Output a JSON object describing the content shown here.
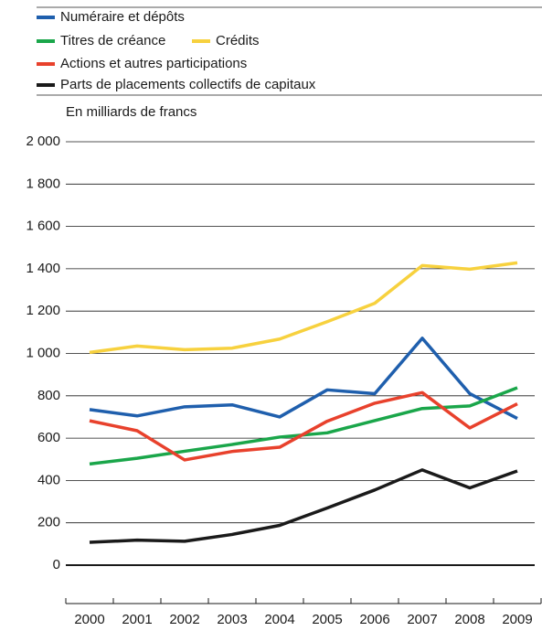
{
  "chart_data": {
    "type": "line",
    "y_label": "En milliards de francs",
    "categories": [
      "2000",
      "2001",
      "2002",
      "2003",
      "2004",
      "2005",
      "2006",
      "2007",
      "2008",
      "2009"
    ],
    "series": [
      {
        "name": "Numéraire et dépôts",
        "color": "#1f5fad",
        "values": [
          735,
          705,
          748,
          757,
          700,
          828,
          810,
          1072,
          810,
          693
        ]
      },
      {
        "name": "Titres de créance",
        "color": "#1aa64a",
        "values": [
          478,
          505,
          538,
          570,
          605,
          625,
          683,
          740,
          752,
          838
        ]
      },
      {
        "name": "Crédits",
        "color": "#f7d13e",
        "values": [
          1005,
          1035,
          1018,
          1025,
          1068,
          1150,
          1237,
          1415,
          1398,
          1428
        ]
      },
      {
        "name": "Actions et autres participations",
        "color": "#e8412c",
        "values": [
          682,
          635,
          497,
          537,
          557,
          680,
          765,
          815,
          648,
          762
        ]
      },
      {
        "name": "Parts de placements collectifs de capitaux",
        "color": "#1a1a1a",
        "values": [
          108,
          118,
          113,
          145,
          188,
          270,
          355,
          450,
          365,
          445
        ]
      }
    ],
    "ylim": [
      0,
      2000
    ],
    "yticks": [
      0,
      200,
      400,
      600,
      800,
      {
        "value": 1000,
        "label": "1 000"
      },
      {
        "value": 1200,
        "label": "1 200"
      },
      {
        "value": 1400,
        "label": "1 400"
      },
      {
        "value": 1600,
        "label": "1 600"
      },
      {
        "value": 1800,
        "label": "1 800"
      },
      {
        "value": 2000,
        "label": "2 000"
      }
    ],
    "grid": true
  }
}
